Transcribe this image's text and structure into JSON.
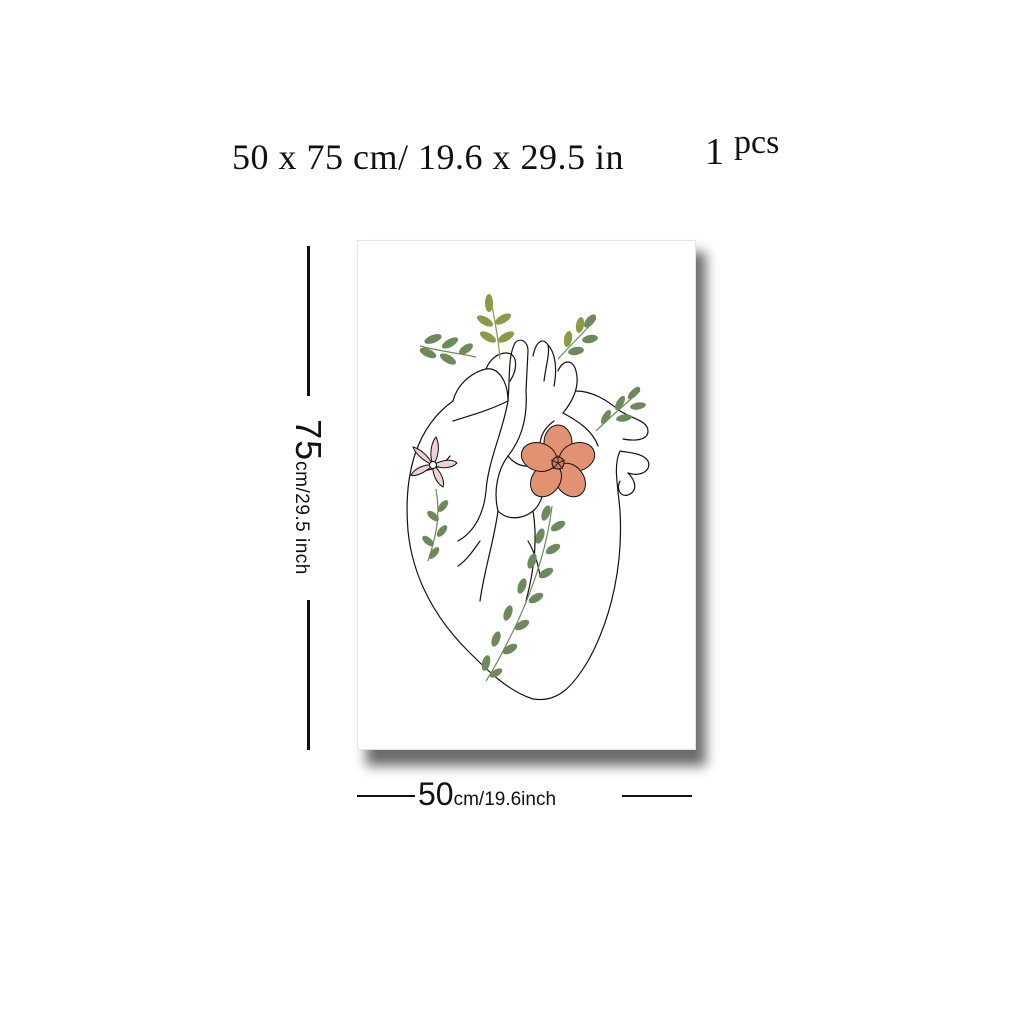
{
  "headline": {
    "size_text": "50 x 75 cm/ 19.6 x 29.5 in",
    "quantity": "1",
    "quantity_unit": "pcs"
  },
  "height_label": {
    "value": "75",
    "unit_text": "cm/29.5 inch"
  },
  "width_label": {
    "value": "50",
    "unit_text": "cm/19.6inch"
  },
  "colors": {
    "line": "#111111",
    "leaf_green": "#6e8a5c",
    "leaf_olive": "#8a9a46",
    "coral_flower": "#e29173",
    "pink_flower": "#ecd2d2",
    "shadow": "#3a3a3a"
  }
}
